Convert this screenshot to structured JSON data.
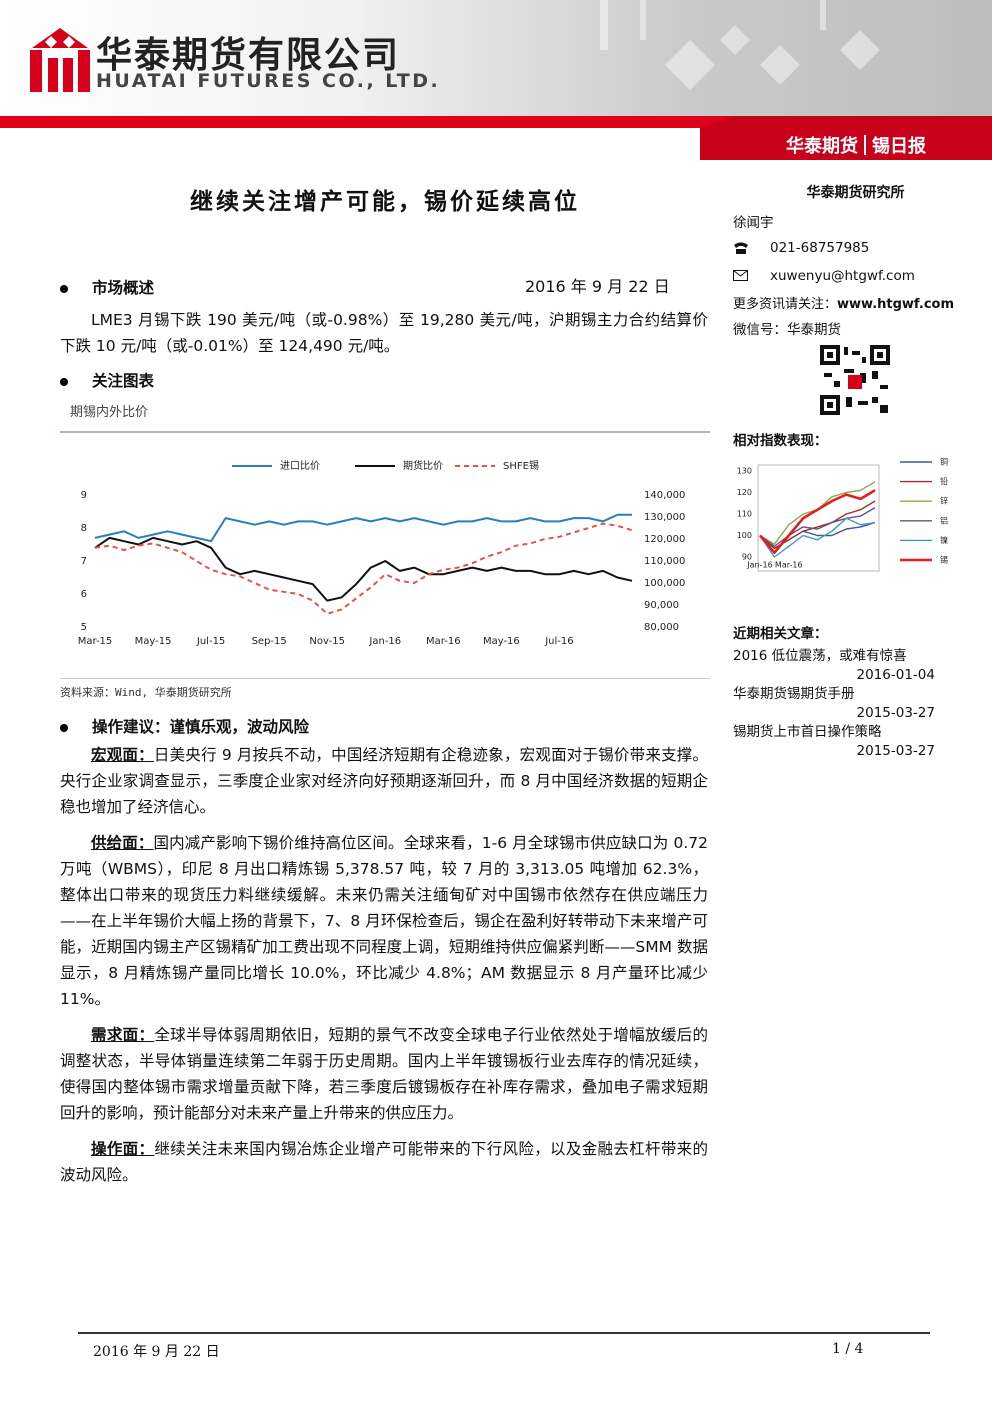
{
  "header": {
    "company_cn": "华泰期货有限公司",
    "company_en": "HUATAI FUTURES CO., LTD.",
    "brand": "华泰期货",
    "report": "锡日报"
  },
  "title": "继续关注增产可能，锡价延续高位",
  "date": "2016 年 9 月 22 日",
  "sections": [
    {
      "heading": "市场概述",
      "paragraphs": [
        {
          "text": "LME3 月锡下跌 190 美元/吨（或-0.98%）至 19,280 美元/吨，沪期锡主力合约结算价下跌 10 元/吨（或-0.01%）至 124,490 元/吨。"
        }
      ]
    },
    {
      "heading": "关注图表"
    },
    {
      "heading": "操作建议：谨慎乐观，波动风险",
      "paragraphs": [
        {
          "lead": "宏观面：",
          "text": "日美央行 9 月按兵不动，中国经济短期有企稳迹象，宏观面对于锡价带来支撑。央行企业家调查显示，三季度企业家对经济向好预期逐渐回升，而 8 月中国经济数据的短期企稳也增加了经济信心。"
        },
        {
          "lead": "供给面：",
          "text": "国内减产影响下锡价维持高位区间。全球来看，1-6 月全球锡市供应缺口为 0.72 万吨（WBMS），印尼 8 月出口精炼锡 5,378.57 吨，较 7 月的 3,313.05 吨增加 62.3%，整体出口带来的现货压力料继续缓解。未来仍需关注缅甸矿对中国锡市依然存在供应端压力——在上半年锡价大幅上扬的背景下，7、8 月环保检查后，锡企在盈利好转带动下未来增产可能，近期国内锡主产区锡精矿加工费出现不同程度上调，短期维持供应偏紧判断——SMM 数据显示，8 月精炼锡产量同比增长 10.0%，环比减少 4.8%；AM 数据显示 8 月产量环比减少 11%。"
        },
        {
          "lead": "需求面：",
          "text": "全球半导体弱周期依旧，短期的景气不改变全球电子行业依然处于增幅放缓后的调整状态，半导体销量连续第二年弱于历史周期。国内上半年镀锡板行业去库存的情况延续，使得国内整体锡市需求增量贡献下降，若三季度后镀锡板存在补库存需求，叠加电子需求短期回升的影响，预计能部分对未来产量上升带来的供应压力。"
        },
        {
          "lead": "操作面：",
          "text": "继续关注未来国内锡冶炼企业增产可能带来的下行风险，以及金融去杠杆带来的波动风险。"
        }
      ]
    }
  ],
  "sidebar": {
    "institute": "华泰期货研究所",
    "analyst": "徐闻宇",
    "phone": "021-68757985",
    "email": "xuwenyu@htgwf.com",
    "follow_label": "更多资讯请关注：",
    "follow_url": "www.htgwf.com",
    "wechat": "微信号：华泰期货",
    "related_heading": "近期相关文章：",
    "articles": [
      {
        "title": "2016 低位震荡，或难有惊喜",
        "date": "2016-01-04"
      },
      {
        "title": "华泰期货锡期货手册",
        "date": "2015-03-27"
      },
      {
        "title": "锡期货上市首日操作策略",
        "date": "2015-03-27"
      }
    ]
  },
  "footer": {
    "date": "2016 年 9 月 22 日",
    "page": "1 / 4"
  },
  "chart_data": [
    {
      "type": "line",
      "title": "期锡内外比价",
      "source": "资料来源：Wind, 华泰期货研究所",
      "categories": [
        "Mar-15",
        null,
        null,
        null,
        "May-15",
        null,
        null,
        null,
        "Jul-15",
        null,
        null,
        null,
        "Sep-15",
        null,
        null,
        null,
        "Nov-15",
        null,
        null,
        null,
        "Jan-16",
        null,
        null,
        null,
        "Mar-16",
        null,
        null,
        null,
        "May-16",
        null,
        null,
        null,
        "Jul-16",
        null,
        null,
        null,
        null,
        null
      ],
      "series": [
        {
          "name": "进口比价",
          "color": "#2a7fb8",
          "values": [
            7.7,
            7.8,
            7.9,
            7.7,
            7.8,
            7.9,
            7.8,
            7.7,
            7.6,
            8.3,
            8.2,
            8.1,
            8.2,
            8.1,
            8.2,
            8.2,
            8.1,
            8.2,
            8.3,
            8.2,
            8.3,
            8.2,
            8.3,
            8.2,
            8.1,
            8.2,
            8.2,
            8.3,
            8.2,
            8.2,
            8.3,
            8.2,
            8.2,
            8.3,
            8.3,
            8.2,
            8.4,
            8.4
          ]
        },
        {
          "name": "期货比价",
          "color": "#111111",
          "values": [
            7.4,
            7.7,
            7.6,
            7.5,
            7.7,
            7.6,
            7.5,
            7.6,
            7.4,
            6.8,
            6.6,
            6.7,
            6.6,
            6.5,
            6.4,
            6.3,
            5.8,
            5.9,
            6.3,
            6.8,
            7.0,
            6.7,
            6.8,
            6.6,
            6.6,
            6.7,
            6.8,
            6.7,
            6.8,
            6.7,
            6.7,
            6.6,
            6.6,
            6.7,
            6.6,
            6.7,
            6.5,
            6.4
          ]
        },
        {
          "name": "SHFE锡",
          "color": "#e8504a",
          "dash": true,
          "axis": "y2",
          "values": [
            116000,
            117000,
            115000,
            117000,
            118000,
            116000,
            114000,
            110000,
            106000,
            104000,
            103000,
            100000,
            97000,
            96000,
            95000,
            92000,
            86000,
            88000,
            93000,
            98000,
            104000,
            101000,
            100000,
            104000,
            106000,
            107000,
            109000,
            112000,
            114000,
            117000,
            118000,
            120000,
            121000,
            123000,
            125000,
            127000,
            126000,
            124000
          ]
        }
      ],
      "ylim": [
        5,
        9
      ],
      "yticks": [
        5,
        6,
        7,
        8,
        9
      ],
      "y2lim": [
        80000,
        140000
      ],
      "y2ticks": [
        {
          "value": 80000,
          "label": "80,000"
        },
        {
          "value": 90000,
          "label": "90,000"
        },
        {
          "value": 100000,
          "label": "100,000"
        },
        {
          "value": 110000,
          "label": "110,000"
        },
        {
          "value": 120000,
          "label": "120,000"
        },
        {
          "value": 130000,
          "label": "130,000"
        },
        {
          "value": 140000,
          "label": "140,000"
        }
      ],
      "grid": false,
      "legend": "top"
    },
    {
      "type": "line",
      "title": "相对指数表现：",
      "categories": [
        "Jan-16",
        null,
        "Mar-16",
        null,
        null,
        null,
        null,
        null,
        null
      ],
      "series": [
        {
          "name": "铜",
          "color": "#3a5a8c",
          "values": [
            100,
            94,
            98,
            102,
            100,
            100,
            103,
            104,
            106
          ]
        },
        {
          "name": "铅",
          "color": "#a0302a",
          "values": [
            100,
            94,
            98,
            102,
            104,
            106,
            110,
            112,
            116
          ]
        },
        {
          "name": "锌",
          "color": "#8aab4a",
          "values": [
            100,
            96,
            105,
            110,
            112,
            118,
            120,
            121,
            125
          ]
        },
        {
          "name": "铝",
          "color": "#6a4f8a",
          "values": [
            100,
            95,
            100,
            104,
            103,
            106,
            108,
            109,
            113
          ]
        },
        {
          "name": "镍",
          "color": "#3c9cc0",
          "values": [
            100,
            90,
            95,
            100,
            98,
            102,
            108,
            105,
            106
          ]
        },
        {
          "name": "锡",
          "color": "#e0201e",
          "values": [
            100,
            92,
            100,
            108,
            112,
            116,
            119,
            117,
            121
          ]
        }
      ],
      "ylim": [
        90,
        130
      ],
      "yticks": [
        90,
        100,
        110,
        120,
        130
      ],
      "grid": false,
      "legend": "right"
    }
  ]
}
